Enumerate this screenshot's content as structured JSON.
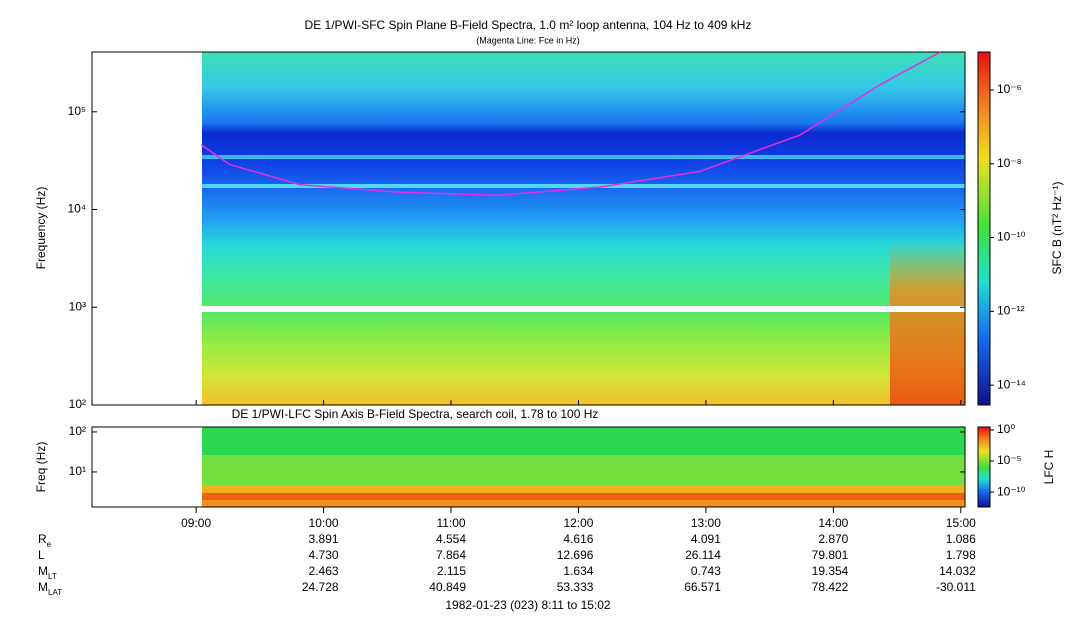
{
  "chart_data": [
    {
      "type": "spectrogram",
      "title": "DE 1/PWI-SFC  Spin Plane B-Field Spectra, 1.0 m² loop antenna, 104 Hz to 409 kHz",
      "subtitle": "(Magenta Line: Fce in Hz)",
      "ylabel": "Frequency (Hz)",
      "xlim": [
        8.183,
        15.033
      ],
      "ylim": [
        100,
        409000
      ],
      "log_y": true,
      "yticks": [
        {
          "value": 100,
          "label": "10²"
        },
        {
          "value": 1000,
          "label": "10³"
        },
        {
          "value": 10000,
          "label": "10⁴"
        },
        {
          "value": 100000,
          "label": "10⁵"
        }
      ],
      "colorbar": {
        "label": "SFC B (nT² Hz⁻¹)",
        "lim": [
          2.9e-15,
          1.07e-05
        ],
        "log": true,
        "ticks": [
          {
            "value": 1e-14,
            "label": "10⁻¹⁴"
          },
          {
            "value": 1e-12,
            "label": "10⁻¹²"
          },
          {
            "value": 1e-10,
            "label": "10⁻¹⁰"
          },
          {
            "value": 1e-08,
            "label": "10⁻⁸"
          },
          {
            "value": 1e-06,
            "label": "10⁻⁶"
          }
        ]
      },
      "line": {
        "color": "#e030e0",
        "x": [
          9.04,
          9.26,
          9.81,
          10.6,
          11.38,
          12.17,
          12.95,
          13.74,
          14.37,
          14.84
        ],
        "values": [
          46000,
          29000,
          18000,
          15000,
          14000,
          17000,
          24500,
          58000,
          190000,
          409000
        ]
      }
    },
    {
      "type": "spectrogram",
      "title": "DE 1/PWI-LFC  Spin Axis B-Field Spectra, search coil, 1.78 to 100 Hz",
      "ylabel": "Freq (Hz)",
      "xlim": [
        8.183,
        15.033
      ],
      "xticks": [
        {
          "value": 9,
          "label": "09:00"
        },
        {
          "value": 10,
          "label": "10:00"
        },
        {
          "value": 11,
          "label": "11:00"
        },
        {
          "value": 12,
          "label": "12:00"
        },
        {
          "value": 13,
          "label": "13:00"
        },
        {
          "value": 14,
          "label": "14:00"
        },
        {
          "value": 15,
          "label": "15:00"
        }
      ],
      "ylim": [
        1.33,
        133
      ],
      "log_y": true,
      "yticks": [
        {
          "value": 10,
          "label": "10¹"
        },
        {
          "value": 100,
          "label": "10²"
        }
      ],
      "colorbar": {
        "label": "LFC H",
        "lim": [
          4e-13,
          3
        ],
        "log": true,
        "ticks": [
          {
            "value": 1e-10,
            "label": "10⁻¹⁰"
          },
          {
            "value": 1e-05,
            "label": "10⁻⁵"
          },
          {
            "value": 1,
            "label": "10⁰"
          }
        ]
      }
    }
  ],
  "ephemeris": {
    "rows": [
      {
        "label": "R",
        "sub": "e",
        "values": [
          "3.891",
          "4.554",
          "4.616",
          "4.091",
          "2.870",
          "1.086"
        ]
      },
      {
        "label": "L",
        "values": [
          "4.730",
          "7.864",
          "12.696",
          "26.114",
          "79.801",
          "1.798"
        ]
      },
      {
        "label": "M",
        "sub": "LT",
        "values": [
          "2.463",
          "2.115",
          "1.634",
          "0.743",
          "19.354",
          "14.032"
        ]
      },
      {
        "label": "M",
        "sub": "LAT",
        "values": [
          "24.728",
          "40.849",
          "53.333",
          "66.571",
          "78.422",
          "-30.011"
        ]
      }
    ],
    "footer": "1982-01-23 (023) 8:11 to 15:02"
  }
}
